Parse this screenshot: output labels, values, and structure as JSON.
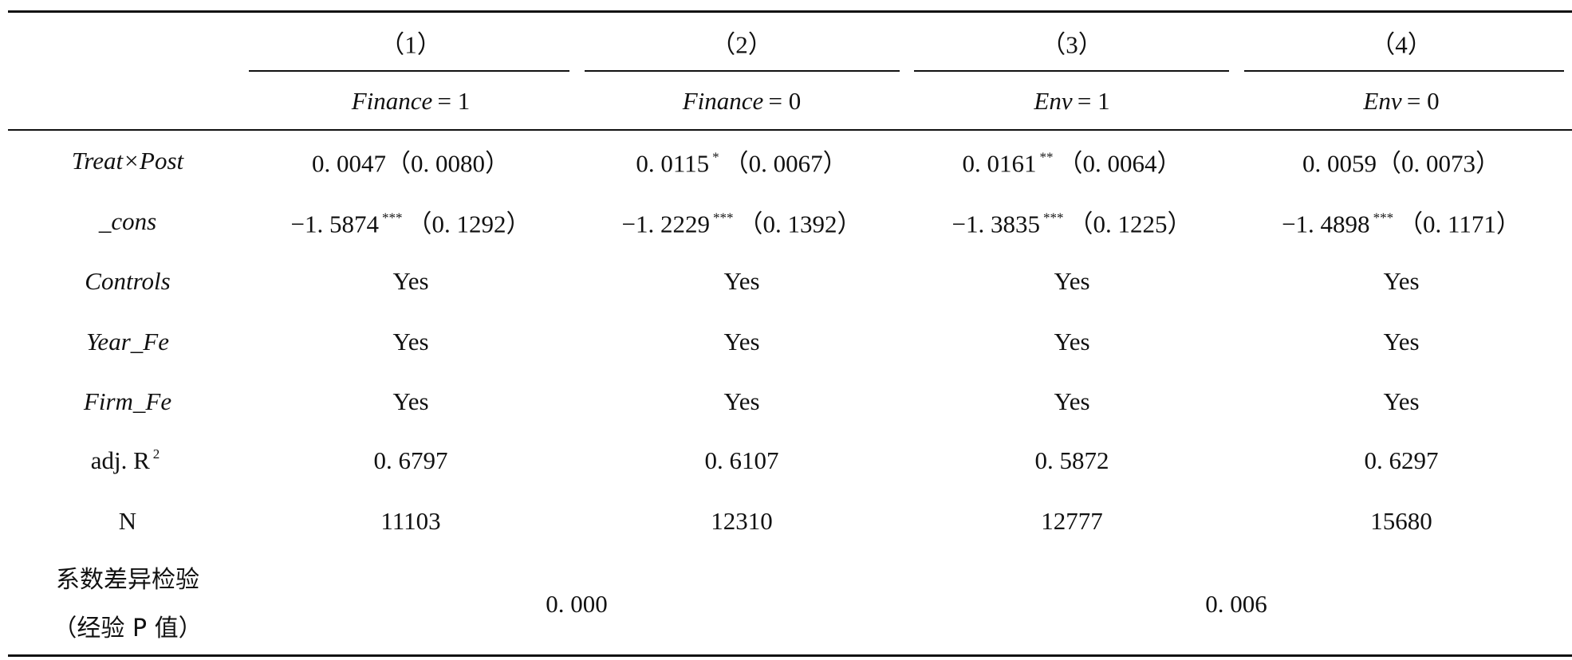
{
  "header": {
    "columns": [
      "（1）",
      "（2）",
      "（3）",
      "（4）"
    ],
    "groups": [
      {
        "var": "Finance",
        "cond": "= 1"
      },
      {
        "var": "Finance",
        "cond": "= 0"
      },
      {
        "var": "Env",
        "cond": "= 1"
      },
      {
        "var": "Env",
        "cond": "= 0"
      }
    ]
  },
  "rows": [
    {
      "label": "Treat×Post",
      "italic": true,
      "cells": [
        {
          "coef": "0. 0047",
          "se": "（0. 0080）"
        },
        {
          "coef": "0. 0115",
          "stars": "*",
          "se": "（0. 0067）"
        },
        {
          "coef": "0. 0161",
          "stars": "**",
          "se": "（0. 0064）"
        },
        {
          "coef": "0. 0059",
          "se": "（0. 0073）"
        }
      ]
    },
    {
      "label": "_cons",
      "italic": true,
      "cells": [
        {
          "coef": "−1. 5874",
          "stars": "***",
          "se": "（0. 1292）"
        },
        {
          "coef": "−1. 2229",
          "stars": "***",
          "se": "（0. 1392）"
        },
        {
          "coef": "−1. 3835",
          "stars": "***",
          "se": "（0. 1225）"
        },
        {
          "coef": "−1. 4898",
          "stars": "***",
          "se": "（0. 1171）"
        }
      ]
    },
    {
      "label": "Controls",
      "italic": true,
      "cells": [
        "Yes",
        "Yes",
        "Yes",
        "Yes"
      ]
    },
    {
      "label": "Year_Fe",
      "italic": true,
      "cells": [
        "Yes",
        "Yes",
        "Yes",
        "Yes"
      ]
    },
    {
      "label": "Firm_Fe",
      "italic": true,
      "cells": [
        "Yes",
        "Yes",
        "Yes",
        "Yes"
      ]
    },
    {
      "label": "adj. R",
      "label_sup": "2",
      "cells": [
        "0. 6797",
        "0. 6107",
        "0. 5872",
        "0. 6297"
      ]
    },
    {
      "label": "N",
      "cells": [
        "11103",
        "12310",
        "12777",
        "15680"
      ]
    }
  ],
  "test": {
    "label": [
      "系数差异检验",
      "（经验 P 值）"
    ],
    "values": [
      "0. 000",
      "0. 006"
    ]
  }
}
